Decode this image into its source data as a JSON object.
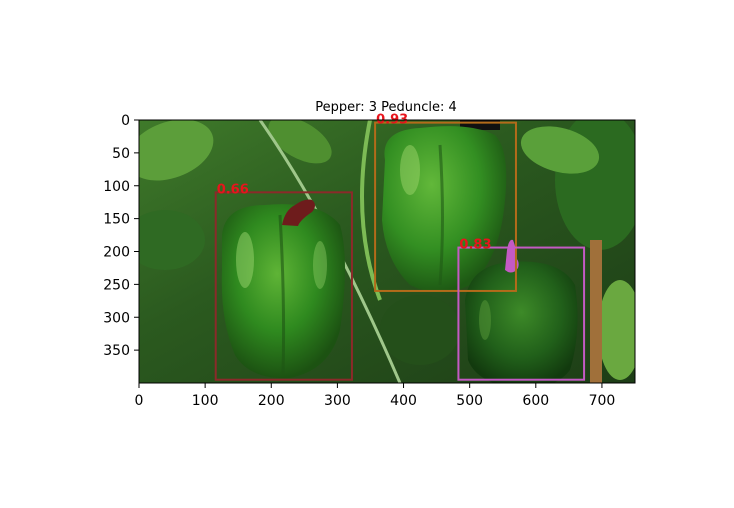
{
  "figure": {
    "title": "Pepper: 3 Peduncle: 4"
  },
  "image_extent": {
    "x": [
      0,
      750
    ],
    "y": [
      0,
      400
    ]
  },
  "axes": {
    "x_ticks": [
      0,
      100,
      200,
      300,
      400,
      500,
      600,
      700
    ],
    "y_ticks": [
      0,
      50,
      100,
      150,
      200,
      250,
      300,
      350
    ]
  },
  "colors": {
    "box_left": "#8b2a2a",
    "box_top": "#b36b1a",
    "box_right": "#c45ac4",
    "label_text": "#e8141c",
    "mask_left": "#6e1c1c",
    "mask_right": "#c45ac4"
  },
  "detections": [
    {
      "score": "0.93",
      "x1": 357,
      "y1": 4,
      "x2": 570,
      "y2": 260,
      "color": "#b36b1a"
    },
    {
      "score": "0.66",
      "x1": 116,
      "y1": 110,
      "x2": 322,
      "y2": 395,
      "color": "#8b2a2a"
    },
    {
      "score": "0.83",
      "x1": 483,
      "y1": 194,
      "x2": 673,
      "y2": 395,
      "color": "#c45ac4"
    }
  ]
}
